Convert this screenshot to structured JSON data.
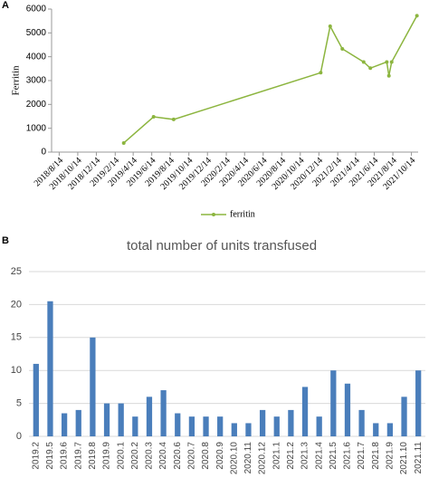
{
  "chart_data": [
    {
      "type": "line",
      "panel": "A",
      "ylabel": "Ferritin",
      "x": [
        "2019/3/14",
        "2019/6/20",
        "2019/8/25",
        "2020/12/20",
        "2021/1/20",
        "2021/3/1",
        "2021/5/10",
        "2021/6/1",
        "2021/7/25",
        "2021/8/1",
        "2021/8/10",
        "2021/11/1"
      ],
      "series": [
        {
          "name": "ferritin",
          "color": "#8cb53f",
          "values": [
            380,
            1480,
            1370,
            3330,
            5280,
            4330,
            3780,
            3520,
            3780,
            3200,
            3780,
            5720
          ]
        }
      ],
      "xlim": [
        "2018/7/20",
        "2021/11/5"
      ],
      "xticks": [
        "2018/8/14",
        "2018/10/14",
        "2018/12/14",
        "2019/2/14",
        "2019/4/14",
        "2019/6/14",
        "2019/8/14",
        "2019/10/14",
        "2019/12/14",
        "2020/2/14",
        "2020/4/14",
        "2020/6/14",
        "2020/8/14",
        "2020/10/14",
        "2020/12/14",
        "2021/2/14",
        "2021/4/14",
        "2021/6/14",
        "2021/8/14",
        "2021/10/14"
      ],
      "ylim": [
        0,
        6000
      ],
      "yticks": [
        0,
        1000,
        2000,
        3000,
        4000,
        5000,
        6000
      ],
      "grid": false,
      "legend": "bottom"
    },
    {
      "type": "bar",
      "panel": "B",
      "title": "total number of units transfused",
      "categories": [
        "2019.2",
        "2019.5",
        "2019.6",
        "2019.7",
        "2019.8",
        "2019.9",
        "2020.1",
        "2020.2",
        "2020.3",
        "2020.4",
        "2020.6",
        "2020.7",
        "2020.8",
        "2020.9",
        "2020.10",
        "2020.11",
        "2020.12",
        "2021.1",
        "2021.2",
        "2021.3",
        "2021.4",
        "2021.5",
        "2021.6",
        "2021.7",
        "2021.8",
        "2021.9",
        "2021.10",
        "2021.11"
      ],
      "values": [
        11,
        20.5,
        3.5,
        4,
        15,
        5,
        5,
        3,
        6,
        7,
        3.5,
        3,
        3,
        3,
        2,
        2,
        4,
        3,
        4,
        7.5,
        3,
        10,
        8,
        4,
        2,
        2,
        6,
        10
      ],
      "color": "#4a7ebb",
      "ylim": [
        0,
        25
      ],
      "yticks": [
        0,
        5,
        10,
        15,
        20,
        25
      ],
      "grid": true
    }
  ]
}
